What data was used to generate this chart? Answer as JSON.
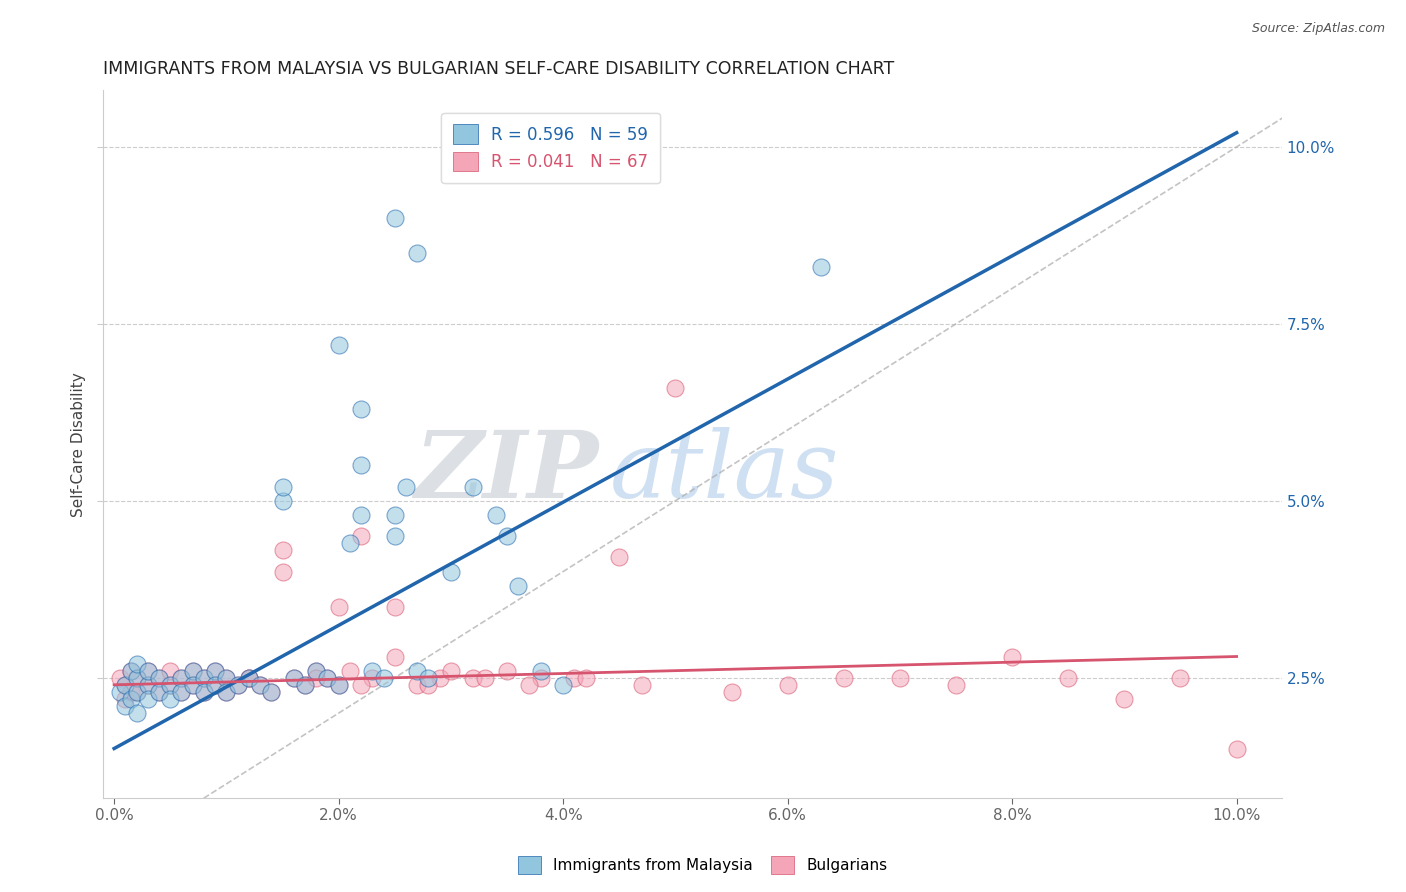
{
  "title": "IMMIGRANTS FROM MALAYSIA VS BULGARIAN SELF-CARE DISABILITY CORRELATION CHART",
  "source": "Source: ZipAtlas.com",
  "ylabel": "Self-Care Disability",
  "color_blue": "#92c5de",
  "color_pink": "#f4a6b8",
  "line_blue": "#2166ac",
  "line_pink": "#d6546e",
  "line_ref": "#aaaaaa",
  "watermark_zip": "ZIP",
  "watermark_atlas": "atlas",
  "legend_label1": "R = 0.596   N = 59",
  "legend_label2": "R = 0.041   N = 67",
  "legend_bottom1": "Immigrants from Malaysia",
  "legend_bottom2": "Bulgarians",
  "blue_line_x": [
    0.0,
    0.1
  ],
  "blue_line_y": [
    0.015,
    0.102
  ],
  "pink_line_x": [
    0.0,
    0.1
  ],
  "pink_line_y": [
    0.024,
    0.028
  ],
  "ref_line_x": [
    0.0,
    0.105
  ],
  "ref_line_y": [
    0.0,
    0.105
  ],
  "xlim": [
    -0.001,
    0.104
  ],
  "ylim": [
    0.008,
    0.108
  ],
  "yticks": [
    0.025,
    0.05,
    0.075,
    0.1
  ],
  "xticks": [
    0.0,
    0.02,
    0.04,
    0.06,
    0.08,
    0.1
  ],
  "blue_x": [
    0.0005,
    0.001,
    0.001,
    0.0015,
    0.0015,
    0.002,
    0.002,
    0.002,
    0.002,
    0.003,
    0.003,
    0.003,
    0.004,
    0.004,
    0.005,
    0.005,
    0.006,
    0.006,
    0.007,
    0.007,
    0.008,
    0.008,
    0.009,
    0.009,
    0.01,
    0.01,
    0.011,
    0.012,
    0.013,
    0.014,
    0.015,
    0.016,
    0.017,
    0.018,
    0.019,
    0.02,
    0.021,
    0.022,
    0.023,
    0.024,
    0.025,
    0.026,
    0.027,
    0.028,
    0.03,
    0.032,
    0.034,
    0.036,
    0.038,
    0.015,
    0.063,
    0.025,
    0.027,
    0.02,
    0.022,
    0.022,
    0.025,
    0.035,
    0.04
  ],
  "blue_y": [
    0.023,
    0.024,
    0.021,
    0.026,
    0.022,
    0.025,
    0.023,
    0.027,
    0.02,
    0.024,
    0.022,
    0.026,
    0.025,
    0.023,
    0.024,
    0.022,
    0.025,
    0.023,
    0.026,
    0.024,
    0.025,
    0.023,
    0.026,
    0.024,
    0.025,
    0.023,
    0.024,
    0.025,
    0.024,
    0.023,
    0.05,
    0.025,
    0.024,
    0.026,
    0.025,
    0.024,
    0.044,
    0.048,
    0.026,
    0.025,
    0.045,
    0.052,
    0.026,
    0.025,
    0.04,
    0.052,
    0.048,
    0.038,
    0.026,
    0.052,
    0.083,
    0.09,
    0.085,
    0.072,
    0.055,
    0.063,
    0.048,
    0.045,
    0.024
  ],
  "pink_x": [
    0.0005,
    0.001,
    0.001,
    0.0015,
    0.0015,
    0.002,
    0.002,
    0.003,
    0.003,
    0.004,
    0.004,
    0.005,
    0.005,
    0.006,
    0.006,
    0.007,
    0.007,
    0.008,
    0.008,
    0.009,
    0.009,
    0.01,
    0.01,
    0.011,
    0.012,
    0.013,
    0.014,
    0.015,
    0.016,
    0.017,
    0.018,
    0.019,
    0.02,
    0.021,
    0.022,
    0.023,
    0.025,
    0.027,
    0.029,
    0.032,
    0.035,
    0.038,
    0.041,
    0.045,
    0.05,
    0.055,
    0.06,
    0.065,
    0.07,
    0.075,
    0.08,
    0.085,
    0.09,
    0.095,
    0.1,
    0.025,
    0.03,
    0.02,
    0.022,
    0.018,
    0.015,
    0.012,
    0.028,
    0.033,
    0.037,
    0.042,
    0.047
  ],
  "pink_y": [
    0.025,
    0.024,
    0.022,
    0.026,
    0.023,
    0.025,
    0.023,
    0.024,
    0.026,
    0.025,
    0.023,
    0.024,
    0.026,
    0.025,
    0.023,
    0.024,
    0.026,
    0.025,
    0.023,
    0.024,
    0.026,
    0.025,
    0.023,
    0.024,
    0.025,
    0.024,
    0.023,
    0.04,
    0.025,
    0.024,
    0.026,
    0.025,
    0.024,
    0.026,
    0.045,
    0.025,
    0.035,
    0.024,
    0.025,
    0.025,
    0.026,
    0.025,
    0.025,
    0.042,
    0.066,
    0.023,
    0.024,
    0.025,
    0.025,
    0.024,
    0.028,
    0.025,
    0.022,
    0.025,
    0.015,
    0.028,
    0.026,
    0.035,
    0.024,
    0.025,
    0.043,
    0.025,
    0.024,
    0.025,
    0.024,
    0.025,
    0.024
  ]
}
